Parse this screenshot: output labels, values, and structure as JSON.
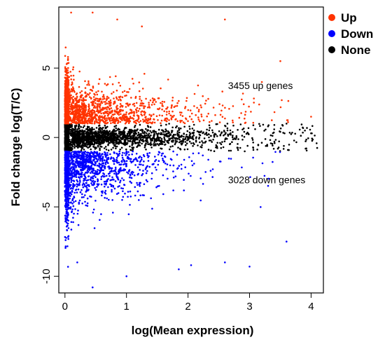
{
  "chart_data": {
    "type": "scatter",
    "title": "",
    "xlabel": "log(Mean expression)",
    "ylabel": "Fold change log(T/C)",
    "xlim": [
      -0.1,
      4.2
    ],
    "ylim": [
      -11.2,
      9.4
    ],
    "x_ticks": [
      "0",
      "1",
      "2",
      "3",
      "4"
    ],
    "y_ticks": [
      "-10",
      "-5",
      "0",
      "5"
    ],
    "grid": false,
    "legend_position": "top-right",
    "legend": [
      {
        "label": "Up",
        "color": "#ff3300"
      },
      {
        "label": "Down",
        "color": "#0000ff"
      },
      {
        "label": "None",
        "color": "#000000"
      }
    ],
    "annotations": [
      {
        "text": "3455 up genes",
        "x": 2.65,
        "y": 3.5
      },
      {
        "text": "3028 down genes",
        "x": 2.65,
        "y": -3.3
      }
    ],
    "series": [
      {
        "name": "Up",
        "count": 3455,
        "color": "#ff3300",
        "highlights": [
          [
            0.1,
            9.0
          ],
          [
            0.45,
            9.0
          ],
          [
            2.6,
            8.5
          ],
          [
            0.85,
            8.5
          ],
          [
            1.25,
            8.0
          ],
          [
            3.5,
            5.5
          ],
          [
            3.2,
            4.0
          ],
          [
            4.0,
            1.5
          ],
          [
            0.05,
            5.8
          ]
        ]
      },
      {
        "name": "Down",
        "count": 3028,
        "color": "#0000ff",
        "highlights": [
          [
            0.45,
            -10.8
          ],
          [
            1.0,
            -10.0
          ],
          [
            0.2,
            -9.0
          ],
          [
            1.85,
            -9.5
          ],
          [
            2.05,
            -9.2
          ],
          [
            2.6,
            -9.0
          ],
          [
            3.0,
            -9.3
          ],
          [
            3.6,
            -7.5
          ],
          [
            0.05,
            -6.2
          ]
        ]
      },
      {
        "name": "None",
        "color": "#000000",
        "highlights": [
          [
            3.9,
            0.5
          ],
          [
            4.0,
            0.3
          ],
          [
            3.6,
            1.0
          ],
          [
            3.3,
            0.8
          ],
          [
            0.05,
            3.5
          ],
          [
            0.05,
            -3.0
          ]
        ]
      }
    ]
  }
}
